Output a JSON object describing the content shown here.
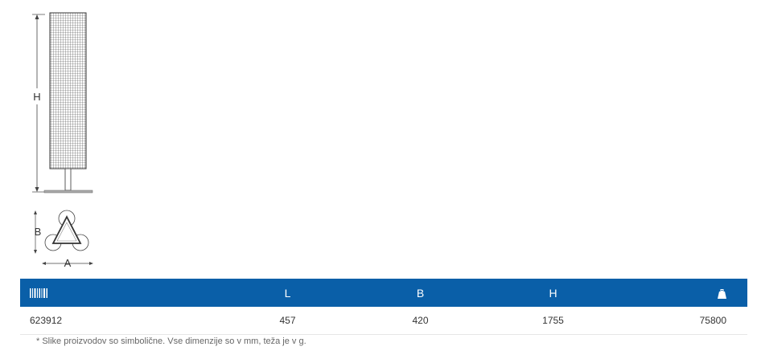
{
  "drawing": {
    "height_label": "H",
    "depth_label": "B",
    "width_label": "A"
  },
  "table": {
    "headers": {
      "article_icon": "barcode-icon",
      "length": "L",
      "width": "B",
      "height": "H",
      "weight_icon": "weight-icon"
    },
    "rows": [
      {
        "article": "623912",
        "length": "457",
        "width": "420",
        "height": "1755",
        "weight": "75800"
      }
    ],
    "header_color": "#0a5fa8"
  },
  "footnote": "* Slike proizvodov so simbolične. Vse dimenzije so v mm, teža je v g."
}
